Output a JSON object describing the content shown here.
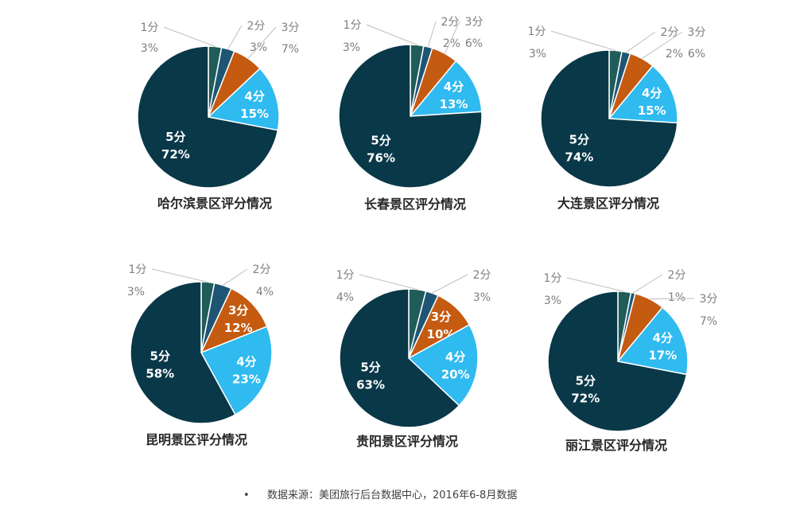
{
  "chart_data": [
    {
      "type": "pie",
      "title": "哈尔滨景区评分情况",
      "slices": [
        {
          "label": "1分",
          "value": 3,
          "value_label": "3%",
          "color": "#1f5c5a"
        },
        {
          "label": "2分",
          "value": 3,
          "value_label": "3%",
          "color": "#1f5574"
        },
        {
          "label": "3分",
          "value": 7,
          "value_label": "7%",
          "color": "#c55a11"
        },
        {
          "label": "4分",
          "value": 15,
          "value_label": "15%",
          "color": "#2fbaf0"
        },
        {
          "label": "5分",
          "value": 72,
          "value_label": "72%",
          "color": "#093848"
        }
      ]
    },
    {
      "type": "pie",
      "title": "长春景区评分情况",
      "slices": [
        {
          "label": "1分",
          "value": 3,
          "value_label": "3%",
          "color": "#1f5c5a"
        },
        {
          "label": "2分",
          "value": 2,
          "value_label": "2%",
          "color": "#1f5574"
        },
        {
          "label": "3分",
          "value": 6,
          "value_label": "6%",
          "color": "#c55a11"
        },
        {
          "label": "4分",
          "value": 13,
          "value_label": "13%",
          "color": "#2fbaf0"
        },
        {
          "label": "5分",
          "value": 76,
          "value_label": "76%",
          "color": "#093848"
        }
      ]
    },
    {
      "type": "pie",
      "title": "大连景区评分情况",
      "slices": [
        {
          "label": "1分",
          "value": 3,
          "value_label": "3%",
          "color": "#1f5c5a"
        },
        {
          "label": "2分",
          "value": 2,
          "value_label": "2%",
          "color": "#1f5574"
        },
        {
          "label": "3分",
          "value": 6,
          "value_label": "6%",
          "color": "#c55a11"
        },
        {
          "label": "4分",
          "value": 15,
          "value_label": "15%",
          "color": "#2fbaf0"
        },
        {
          "label": "5分",
          "value": 74,
          "value_label": "74%",
          "color": "#093848"
        }
      ]
    },
    {
      "type": "pie",
      "title": "昆明景区评分情况",
      "slices": [
        {
          "label": "1分",
          "value": 3,
          "value_label": "3%",
          "color": "#1f5c5a"
        },
        {
          "label": "2分",
          "value": 4,
          "value_label": "4%",
          "color": "#1f5574"
        },
        {
          "label": "3分",
          "value": 12,
          "value_label": "12%",
          "color": "#c55a11"
        },
        {
          "label": "4分",
          "value": 23,
          "value_label": "23%",
          "color": "#2fbaf0"
        },
        {
          "label": "5分",
          "value": 58,
          "value_label": "58%",
          "color": "#093848"
        }
      ]
    },
    {
      "type": "pie",
      "title": "贵阳景区评分情况",
      "slices": [
        {
          "label": "1分",
          "value": 4,
          "value_label": "4%",
          "color": "#1f5c5a"
        },
        {
          "label": "2分",
          "value": 3,
          "value_label": "3%",
          "color": "#1f5574"
        },
        {
          "label": "3分",
          "value": 10,
          "value_label": "10%",
          "color": "#c55a11"
        },
        {
          "label": "4分",
          "value": 20,
          "value_label": "20%",
          "color": "#2fbaf0"
        },
        {
          "label": "5分",
          "value": 63,
          "value_label": "63%",
          "color": "#093848"
        }
      ]
    },
    {
      "type": "pie",
      "title": "丽江景区评分情况",
      "slices": [
        {
          "label": "1分",
          "value": 3,
          "value_label": "3%",
          "color": "#1f5c5a"
        },
        {
          "label": "2分",
          "value": 1,
          "value_label": "1%",
          "color": "#1f5574"
        },
        {
          "label": "3分",
          "value": 7,
          "value_label": "7%",
          "color": "#c55a11"
        },
        {
          "label": "4分",
          "value": 17,
          "value_label": "17%",
          "color": "#2fbaf0"
        },
        {
          "label": "5分",
          "value": 72,
          "value_label": "72%",
          "color": "#093848"
        }
      ]
    }
  ],
  "footer": {
    "bullet": "•",
    "source": "数据来源：美团旅行后台数据中心，2016年6-8月数据"
  }
}
